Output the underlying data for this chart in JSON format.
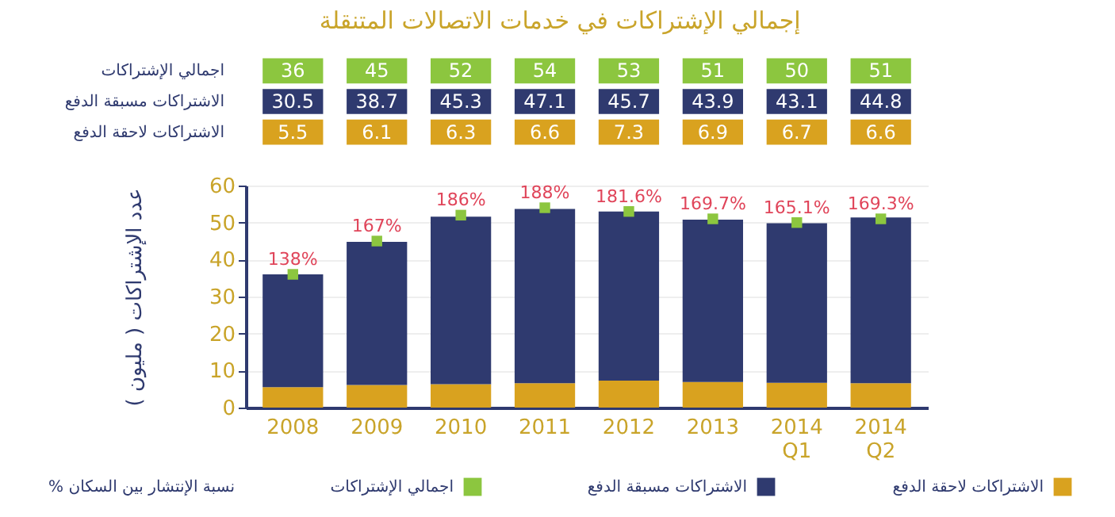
{
  "chart_data": {
    "type": "bar",
    "title": "إجمالي الإشتراكات في خدمات الاتصالات المتنقلة",
    "ylabel": "عدد الإشتراكات ( مليون )",
    "categories": [
      "2008",
      "2009",
      "2010",
      "2011",
      "2012",
      "2013",
      "2014 Q1",
      "2014 Q2"
    ],
    "stacked": true,
    "marker": "square",
    "data_labels": true,
    "grid": "y",
    "legend": "bottom",
    "ylim": [
      0,
      60
    ],
    "yticks": [
      0,
      10,
      20,
      30,
      40,
      50,
      60
    ],
    "series": [
      {
        "name": "الاشتراكات لاحقة الدفع",
        "color": "#d9a21f",
        "values": [
          5.5,
          6.1,
          6.3,
          6.6,
          7.3,
          6.9,
          6.7,
          6.6
        ]
      },
      {
        "name": "الاشتراكات مسبقة الدفع",
        "color": "#2f3a6f",
        "values": [
          30.5,
          38.7,
          45.3,
          47.1,
          45.7,
          43.9,
          43.1,
          44.8
        ]
      },
      {
        "name": "اجمالي الإشتراكات",
        "type": "scatter",
        "color": "#8cc63f",
        "values": [
          36,
          45,
          52,
          54,
          53,
          51,
          50,
          51
        ]
      }
    ],
    "annotations": [
      {
        "text": "138%",
        "x": "2008",
        "y": 36
      },
      {
        "text": "167%",
        "x": "2009",
        "y": 45
      },
      {
        "text": "186%",
        "x": "2010",
        "y": 52
      },
      {
        "text": "188%",
        "x": "2011",
        "y": 54
      },
      {
        "text": "181.6%",
        "x": "2012",
        "y": 53
      },
      {
        "text": "169.7%",
        "x": "2013",
        "y": 51
      },
      {
        "text": "165.1%",
        "x": "2014 Q1",
        "y": 50
      },
      {
        "text": "169.3%",
        "x": "2014 Q2",
        "y": 51
      },
      "% نسبة الإنتشار بين السكان"
    ]
  }
}
